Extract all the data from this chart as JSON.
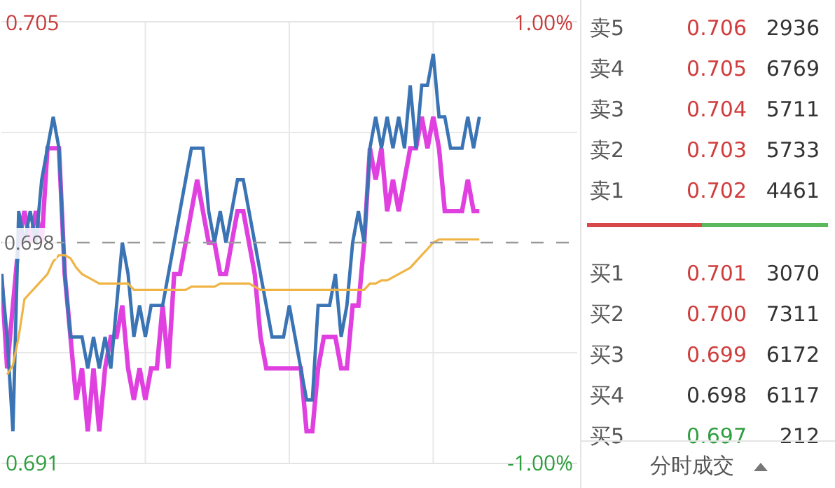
{
  "chart_data": [
    {
      "type": "line",
      "categories": [
        null,
        null,
        null,
        null,
        null,
        null,
        null,
        null,
        null,
        null,
        null,
        null,
        null,
        null,
        null,
        null,
        null,
        null,
        null,
        null,
        null,
        null,
        null,
        null,
        null,
        null,
        null,
        null,
        null,
        null,
        null,
        null,
        null,
        null,
        null,
        null,
        null,
        null,
        null,
        null,
        null,
        null,
        null,
        null,
        null,
        null,
        null,
        null,
        null,
        null,
        null,
        null,
        null,
        null,
        null,
        null,
        null,
        null,
        null,
        null,
        null,
        null,
        null,
        null,
        null,
        null,
        null,
        null,
        null,
        null,
        null,
        null,
        null,
        null,
        null,
        null,
        null,
        null,
        null,
        null,
        null,
        null,
        null,
        null,
        null,
        null,
        null,
        null,
        null,
        null,
        null,
        null,
        null,
        null,
        null,
        null,
        null,
        null,
        null,
        null,
        null
      ],
      "ylim": [
        0.691,
        0.705
      ],
      "yticks": [
        0.691,
        {
          "value": 0.6945,
          "label": null
        },
        {
          "value": 0.7015,
          "label": null
        },
        0.705
      ],
      "y2lim": [
        -1,
        1
      ],
      "y2ticks": [
        {
          "value": -1,
          "label": "-1.00%"
        },
        {
          "value": 1,
          "label": "1.00%"
        }
      ],
      "grid": true,
      "tick_labels": "y",
      "line_style": "solid",
      "marker": "none",
      "ref_lines": [
        {
          "axis": "y",
          "value": 0.698,
          "label": "0.698",
          "color": "#999999",
          "line_style": "dashed"
        }
      ],
      "series": [
        {
          "color": "#e040e0",
          "values": [
            0.697,
            0.694,
            0.696,
            0.698,
            0.699,
            0.698,
            0.699,
            0.698,
            0.701,
            0.701,
            0.701,
            0.697,
            0.695,
            0.693,
            0.694,
            0.692,
            0.694,
            0.692,
            0.694,
            0.695,
            0.695,
            0.696,
            0.694,
            0.693,
            0.694,
            0.693,
            0.694,
            0.694,
            0.696,
            0.694,
            0.697,
            0.697,
            0.698,
            0.699,
            0.7,
            0.699,
            0.698,
            0.698,
            0.697,
            0.697,
            0.698,
            0.699,
            0.699,
            0.698,
            0.697,
            0.695,
            0.694,
            0.694,
            0.694,
            0.694,
            0.694,
            0.694,
            0.694,
            0.692,
            0.692,
            0.694,
            0.695,
            0.695,
            0.695,
            0.694,
            0.694,
            0.696,
            0.696,
            0.698,
            0.701,
            0.7,
            0.701,
            0.699,
            0.7,
            0.699,
            0.7,
            0.701,
            0.701,
            0.702,
            0.701,
            0.702,
            0.701,
            0.699,
            0.699,
            0.699,
            0.699,
            0.7,
            0.699,
            0.699,
            null,
            null,
            null,
            null,
            null,
            null,
            null,
            null,
            null,
            null,
            null,
            null,
            null,
            null,
            null,
            null,
            null
          ]
        },
        {
          "color": "#3a74b4",
          "values": [
            0.697,
            0.695,
            0.692,
            0.699,
            0.698,
            0.699,
            0.698,
            0.7,
            0.701,
            0.702,
            0.701,
            0.697,
            0.695,
            0.695,
            0.695,
            0.694,
            0.695,
            0.694,
            0.695,
            0.694,
            0.696,
            0.698,
            0.697,
            0.695,
            0.696,
            0.695,
            0.696,
            0.696,
            0.696,
            0.697,
            0.698,
            0.699,
            0.7,
            0.701,
            0.701,
            0.701,
            0.699,
            0.698,
            0.699,
            0.698,
            0.699,
            0.7,
            0.7,
            0.699,
            0.698,
            0.697,
            0.696,
            0.695,
            0.695,
            0.695,
            0.696,
            0.695,
            0.694,
            0.693,
            0.693,
            0.696,
            0.696,
            0.696,
            0.697,
            0.695,
            0.696,
            0.698,
            0.699,
            0.698,
            0.701,
            0.702,
            0.701,
            0.702,
            0.701,
            0.702,
            0.701,
            0.703,
            0.701,
            0.703,
            0.703,
            0.704,
            0.702,
            0.702,
            0.701,
            0.701,
            0.701,
            0.702,
            0.701,
            0.702,
            null,
            null,
            null,
            null,
            null,
            null,
            null,
            null,
            null,
            null,
            null,
            null,
            null,
            null,
            null,
            null,
            null
          ]
        },
        {
          "color": "#f0b445",
          "values": [
            null,
            0.6938,
            0.6941,
            0.695,
            0.6962,
            0.6964,
            0.6966,
            0.6968,
            0.697,
            0.6974,
            0.6976,
            0.6976,
            0.6975,
            0.6972,
            0.697,
            0.6969,
            0.6968,
            0.6967,
            0.6967,
            0.6967,
            0.6967,
            0.6967,
            0.6967,
            0.6965,
            0.6965,
            0.6965,
            0.6965,
            0.6965,
            0.6965,
            0.6965,
            0.6965,
            0.6965,
            0.6965,
            0.6966,
            0.6966,
            0.6966,
            0.6966,
            0.6966,
            0.6967,
            0.6967,
            0.6967,
            0.6967,
            0.6967,
            0.6967,
            0.6966,
            0.6965,
            0.6965,
            0.6965,
            0.6965,
            0.6965,
            0.6965,
            0.6965,
            0.6965,
            0.6965,
            0.6965,
            0.6965,
            0.6965,
            0.6965,
            0.6965,
            0.6965,
            0.6965,
            0.6965,
            0.6965,
            0.6965,
            0.6967,
            0.6967,
            0.6968,
            0.6968,
            0.6969,
            0.697,
            0.6971,
            0.6972,
            0.6974,
            0.6976,
            0.6978,
            0.698,
            0.6981,
            0.6981,
            0.6981,
            0.6981,
            0.6981,
            0.6981,
            0.6981,
            0.6981,
            null,
            null,
            null,
            null,
            null,
            null,
            null,
            null,
            null,
            null,
            null,
            null,
            null,
            null,
            null,
            null,
            null
          ]
        }
      ]
    },
    {
      "type": "other",
      "categories": [
        "卖5",
        "卖4",
        "卖3",
        "卖2",
        "卖1",
        "买1",
        "买2",
        "买3",
        "买4",
        "买5"
      ],
      "series": [
        {
          "values": [
            0.706,
            0.705,
            0.704,
            0.703,
            0.702,
            0.701,
            0.7,
            0.699,
            0.698,
            0.697
          ],
          "value_labels": [
            "0.706",
            "0.705",
            "0.704",
            "0.703",
            "0.702",
            "0.701",
            "0.700",
            "0.699",
            "0.698",
            "0.697"
          ]
        },
        {
          "values": [
            2936,
            6769,
            5711,
            5733,
            4461,
            3070,
            7311,
            6172,
            6117,
            212
          ]
        }
      ],
      "data_labels": true,
      "annotations": [
        "分时成交"
      ]
    }
  ]
}
